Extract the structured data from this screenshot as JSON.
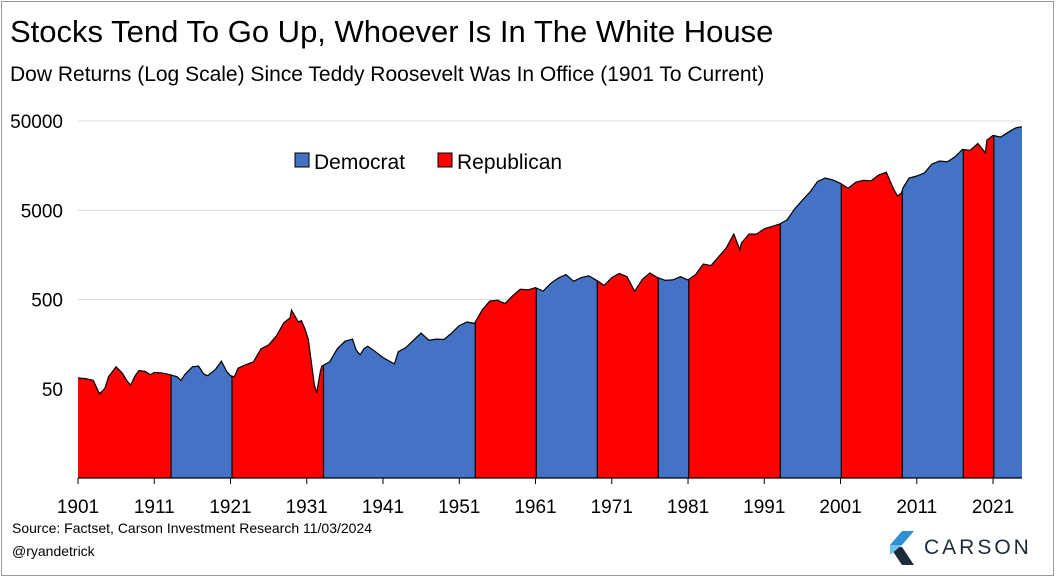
{
  "title": "Stocks Tend To Go Up, Whoever Is In The White House",
  "subtitle": "Dow Returns (Log Scale) Since Teddy Roosevelt Was In Office (1901 To Current)",
  "source": "Source: Factset, Carson Investment Research 11/03/2024",
  "handle": "@ryandetrick",
  "brand": "CARSON",
  "colors": {
    "democrat": "#4472C4",
    "republican": "#FF0000",
    "brand_blue": "#2f8fd0",
    "brand_dark": "#1d2a3a"
  },
  "chart_data": {
    "type": "area",
    "y_scale": "log",
    "ylim": [
      5,
      50000
    ],
    "y_ticks": [
      50,
      500,
      5000,
      50000
    ],
    "y_tick_labels": [
      "50",
      "500",
      "5000",
      "50000"
    ],
    "xlim": [
      1901,
      2024.8
    ],
    "x_ticks": [
      1901,
      1911,
      1921,
      1931,
      1941,
      1951,
      1961,
      1971,
      1981,
      1991,
      2001,
      2011,
      2021
    ],
    "x_tick_labels": [
      "1901",
      "1911",
      "1921",
      "1931",
      "1941",
      "1951",
      "1961",
      "1971",
      "1981",
      "1991",
      "2001",
      "2011",
      "2021"
    ],
    "legend": {
      "position": "top-center",
      "entries": [
        {
          "label": "Democrat",
          "color": "#4472C4"
        },
        {
          "label": "Republican",
          "color": "#FF0000"
        }
      ]
    },
    "grid": "horizontal",
    "terms": [
      {
        "start": 1901,
        "end": 1913.2,
        "party": "Republican"
      },
      {
        "start": 1913.2,
        "end": 1921.2,
        "party": "Democrat"
      },
      {
        "start": 1921.2,
        "end": 1933.2,
        "party": "Republican"
      },
      {
        "start": 1933.2,
        "end": 1953.1,
        "party": "Democrat"
      },
      {
        "start": 1953.1,
        "end": 1961.1,
        "party": "Republican"
      },
      {
        "start": 1961.1,
        "end": 1969.1,
        "party": "Democrat"
      },
      {
        "start": 1969.1,
        "end": 1977.1,
        "party": "Republican"
      },
      {
        "start": 1977.1,
        "end": 1981.1,
        "party": "Democrat"
      },
      {
        "start": 1981.1,
        "end": 1993.1,
        "party": "Republican"
      },
      {
        "start": 1993.1,
        "end": 2001.1,
        "party": "Democrat"
      },
      {
        "start": 2001.1,
        "end": 2009.1,
        "party": "Republican"
      },
      {
        "start": 2009.1,
        "end": 2017.1,
        "party": "Democrat"
      },
      {
        "start": 2017.1,
        "end": 2021.1,
        "party": "Republican"
      },
      {
        "start": 2021.1,
        "end": 2024.8,
        "party": "Democrat"
      }
    ],
    "series": [
      {
        "x": [
          1901,
          1902,
          1903,
          1903.8,
          1904.5,
          1905,
          1906,
          1906.8,
          1907.5,
          1907.9,
          1908.5,
          1909,
          1909.8,
          1910.5,
          1911,
          1912,
          1913,
          1914,
          1914.5,
          1915,
          1916,
          1916.8,
          1917.5,
          1918,
          1919,
          1919.8,
          1920.5,
          1921,
          1921.5,
          1922,
          1923,
          1924,
          1925,
          1926,
          1927,
          1928,
          1928.8,
          1929,
          1929.4,
          1929.9,
          1930.3,
          1930.8,
          1931.2,
          1931.6,
          1932,
          1932.3,
          1932.8,
          1933,
          1933.5,
          1934,
          1935,
          1936,
          1937,
          1937.5,
          1938,
          1938.5,
          1939,
          1940,
          1941,
          1942,
          1942.5,
          1943,
          1944,
          1945,
          1946,
          1947,
          1948,
          1949,
          1950,
          1951,
          1952,
          1953,
          1954,
          1955,
          1956,
          1957,
          1958,
          1959,
          1960,
          1961,
          1962,
          1963,
          1964,
          1965,
          1966,
          1967,
          1968,
          1969,
          1970,
          1971,
          1972,
          1973,
          1974,
          1975,
          1976,
          1977,
          1978,
          1979,
          1980,
          1981,
          1982,
          1983,
          1984,
          1985,
          1986,
          1987,
          1987.8,
          1988,
          1989,
          1990,
          1991,
          1992,
          1993,
          1994,
          1995,
          1996,
          1997,
          1998,
          1999,
          2000,
          2001,
          2002,
          2003,
          2004,
          2005,
          2006,
          2007,
          2008,
          2008.5,
          2009,
          2009.2,
          2010,
          2011,
          2012,
          2013,
          2014,
          2015,
          2016,
          2017,
          2018,
          2019,
          2020,
          2020.2,
          2021,
          2022,
          2023,
          2024,
          2024.8
        ],
        "y": [
          66,
          65,
          62,
          44,
          50,
          68,
          88,
          75,
          60,
          55,
          70,
          80,
          78,
          72,
          76,
          75,
          72,
          68,
          62,
          72,
          88,
          90,
          73,
          70,
          82,
          102,
          78,
          70,
          68,
          85,
          93,
          100,
          140,
          155,
          195,
          275,
          310,
          380,
          330,
          280,
          290,
          230,
          180,
          100,
          55,
          45,
          80,
          90,
          95,
          100,
          140,
          170,
          180,
          135,
          120,
          140,
          150,
          130,
          112,
          100,
          95,
          130,
          145,
          175,
          210,
          175,
          180,
          178,
          210,
          255,
          280,
          270,
          380,
          480,
          490,
          450,
          550,
          650,
          640,
          680,
          620,
          760,
          870,
          950,
          800,
          880,
          920,
          820,
          720,
          880,
          980,
          900,
          620,
          840,
          990,
          880,
          820,
          830,
          900,
          830,
          950,
          1250,
          1200,
          1500,
          1880,
          2700,
          1800,
          2150,
          2700,
          2700,
          3100,
          3300,
          3500,
          3900,
          5200,
          6500,
          8000,
          10500,
          11500,
          10900,
          10000,
          8800,
          10300,
          10800,
          10700,
          12400,
          13300,
          8500,
          7200,
          7800,
          8900,
          11500,
          12100,
          13100,
          16500,
          17800,
          17400,
          19800,
          24000,
          23500,
          28000,
          22000,
          30500,
          34500,
          33000,
          37500,
          42000,
          43000
        ]
      }
    ]
  }
}
